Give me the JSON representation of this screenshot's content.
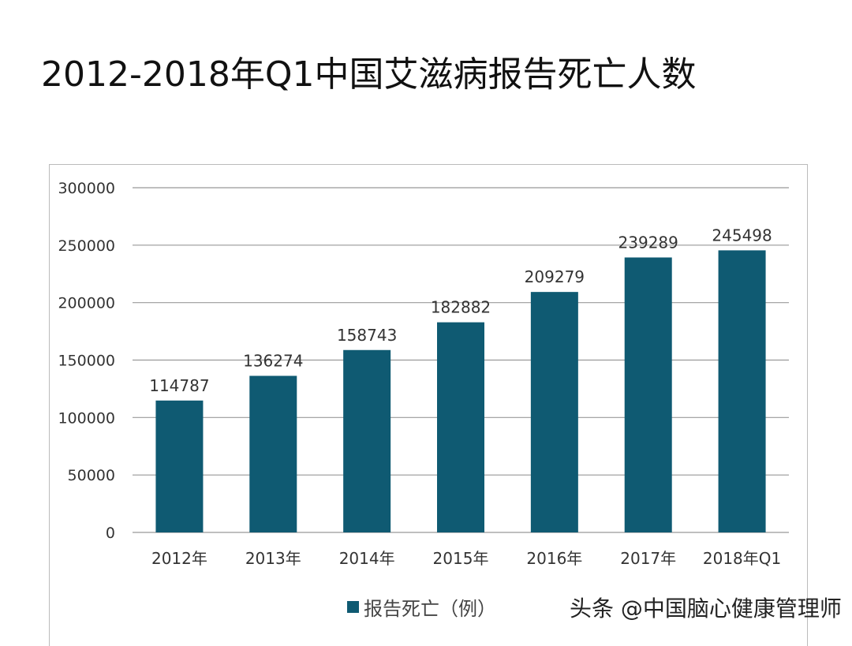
{
  "chart_data": {
    "type": "bar",
    "title": "2012-2018年Q1中国艾滋病报告死亡人数",
    "categories": [
      "2012年",
      "2013年",
      "2014年",
      "2015年",
      "2016年",
      "2017年",
      "2018年Q1"
    ],
    "series": [
      {
        "name": "报告死亡（例）",
        "values": [
          114787,
          136274,
          158743,
          182882,
          209279,
          239289,
          245498
        ],
        "color": "#0f5a72"
      }
    ],
    "ylim": [
      0,
      300000
    ],
    "yticks": [
      0,
      50000,
      100000,
      150000,
      200000,
      250000,
      300000
    ],
    "grid": true,
    "legend": "bottom"
  },
  "watermark": "头条 @中国脑心健康管理师"
}
